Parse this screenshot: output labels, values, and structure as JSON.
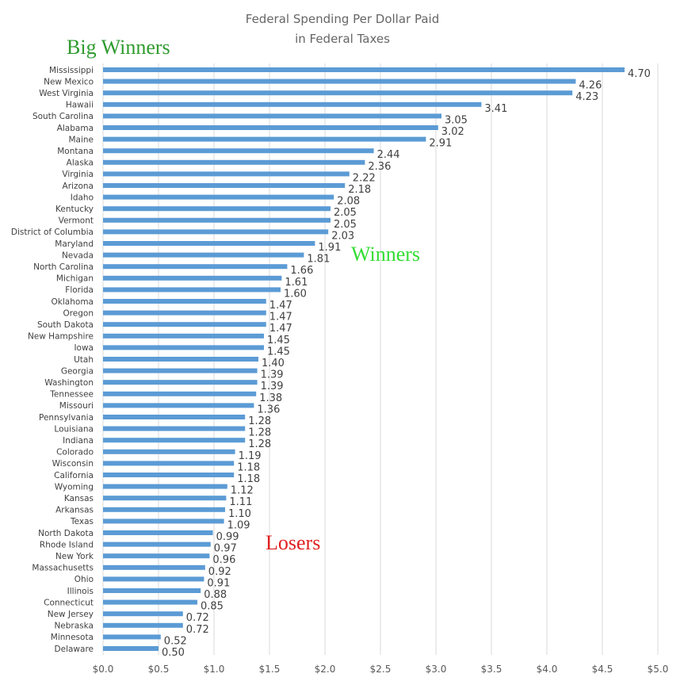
{
  "chart_data": {
    "type": "bar",
    "orientation": "horizontal",
    "title": "Federal Spending Per Dollar Paid",
    "subtitle": "in Federal Taxes",
    "categories": [
      "Mississippi",
      "New Mexico",
      "West Virginia",
      "Hawaii",
      "South Carolina",
      "Alabama",
      "Maine",
      "Montana",
      "Alaska",
      "Virginia",
      "Arizona",
      "Idaho",
      "Kentucky",
      "Vermont",
      "District of Columbia",
      "Maryland",
      "Nevada",
      "North Carolina",
      "Michigan",
      "Florida",
      "Oklahoma",
      "Oregon",
      "South Dakota",
      "New Hampshire",
      "Iowa",
      "Utah",
      "Georgia",
      "Washington",
      "Tennessee",
      "Missouri",
      "Pennsylvania",
      "Louisiana",
      "Indiana",
      "Colorado",
      "Wisconsin",
      "California",
      "Wyoming",
      "Kansas",
      "Arkansas",
      "Texas",
      "North Dakota",
      "Rhode Island",
      "New York",
      "Massachusetts",
      "Ohio",
      "Illinois",
      "Connecticut",
      "New Jersey",
      "Nebraska",
      "Minnesota",
      "Delaware"
    ],
    "values": [
      4.7,
      4.26,
      4.23,
      3.41,
      3.05,
      3.02,
      2.91,
      2.44,
      2.36,
      2.22,
      2.18,
      2.08,
      2.05,
      2.05,
      2.03,
      1.91,
      1.81,
      1.66,
      1.61,
      1.6,
      1.47,
      1.47,
      1.47,
      1.45,
      1.45,
      1.4,
      1.39,
      1.39,
      1.38,
      1.36,
      1.28,
      1.28,
      1.28,
      1.19,
      1.18,
      1.18,
      1.12,
      1.11,
      1.1,
      1.09,
      0.99,
      0.97,
      0.96,
      0.92,
      0.91,
      0.88,
      0.85,
      0.72,
      0.72,
      0.52,
      0.5
    ],
    "value_labels": [
      "4.70",
      "4.26",
      "4.23",
      "3.41",
      "3.05",
      "3.02",
      "2.91",
      "2.44",
      "2.36",
      "2.22",
      "2.18",
      "2.08",
      "2.05",
      "2.05",
      "2.03",
      "1.91",
      "1.81",
      "1.66",
      "1.61",
      "1.60",
      "1.47",
      "1.47",
      "1.47",
      "1.45",
      "1.45",
      "1.40",
      "1.39",
      "1.39",
      "1.38",
      "1.36",
      "1.28",
      "1.28",
      "1.28",
      "1.19",
      "1.18",
      "1.18",
      "1.12",
      "1.11",
      "1.10",
      "1.09",
      "0.99",
      "0.97",
      "0.96",
      "0.92",
      "0.91",
      "0.88",
      "0.85",
      "0.72",
      "0.72",
      "0.52",
      "0.50"
    ],
    "xlim": [
      0,
      5
    ],
    "xticks": [
      0,
      0.5,
      1,
      1.5,
      2,
      2.5,
      3,
      3.5,
      4,
      4.5,
      5
    ],
    "xtick_labels": [
      "$0.0",
      "$0.5",
      "$1.0",
      "$1.5",
      "$2.0",
      "$2.5",
      "$3.0",
      "$3.5",
      "$4.0",
      "$4.5",
      "$5.0"
    ],
    "grid": "vertical",
    "bar_color": "#5b9bd5",
    "annotations": [
      {
        "text": "Big Winners",
        "color": "#2e9b2e"
      },
      {
        "text": "Winners",
        "color": "#33dd33"
      },
      {
        "text": "Losers",
        "color": "#e02020"
      }
    ]
  }
}
